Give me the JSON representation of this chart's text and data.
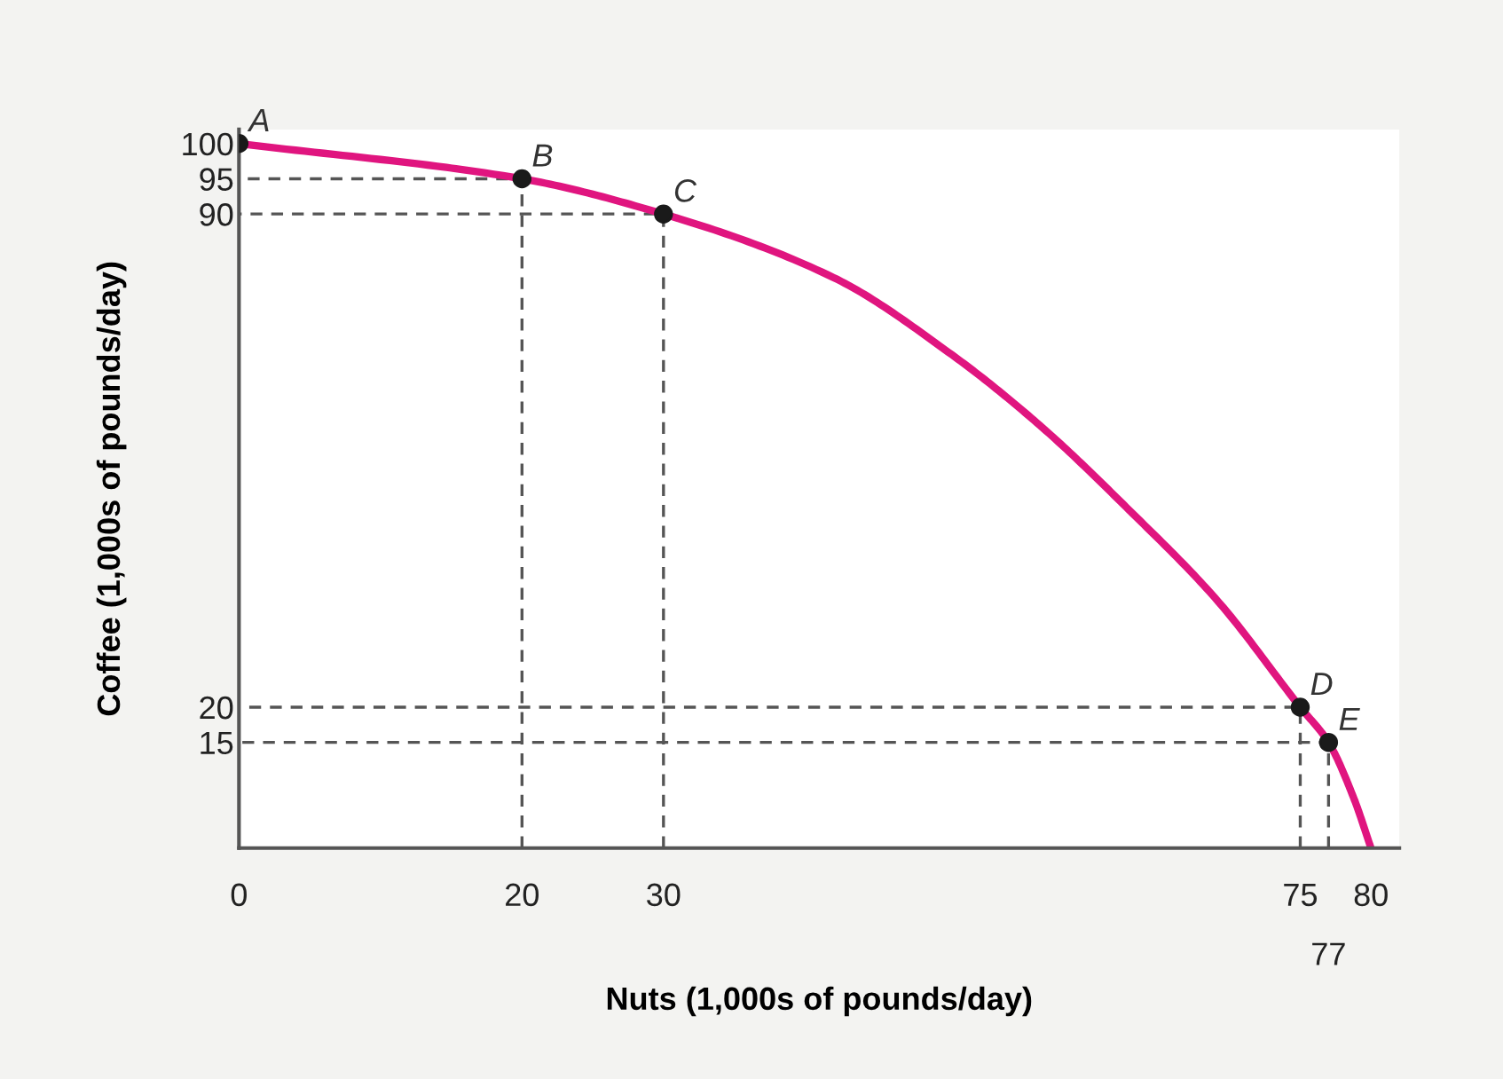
{
  "chart_data": {
    "type": "line",
    "xlabel": "Nuts (1,000s of pounds/day)",
    "ylabel": "Coffee (1,000s of pounds/day)",
    "xlim": [
      0,
      82
    ],
    "ylim": [
      0,
      102
    ],
    "xticks": [
      0,
      20,
      30,
      75,
      80
    ],
    "yticks": [
      15,
      20,
      90,
      95,
      100
    ],
    "grid": false,
    "legend": false,
    "series": [
      {
        "color": "#555555",
        "line_style": "dashed",
        "marker": "none",
        "x": [
          20,
          20,
          0
        ],
        "values": [
          0,
          95,
          95
        ]
      },
      {
        "color": "#555555",
        "line_style": "dashed",
        "marker": "none",
        "x": [
          30,
          30,
          0
        ],
        "values": [
          0,
          90,
          90
        ]
      },
      {
        "color": "#555555",
        "line_style": "dashed",
        "marker": "none",
        "x": [
          75,
          75,
          0
        ],
        "values": [
          0,
          20,
          20
        ]
      },
      {
        "color": "#555555",
        "line_style": "dashed",
        "marker": "none",
        "x": [
          77,
          77,
          0
        ],
        "values": [
          0,
          15,
          15
        ]
      },
      {
        "color": "#e0157f",
        "line_style": "solid",
        "marker": "none",
        "x": [
          0,
          20,
          30,
          42,
          50.4,
          56.6,
          62.9,
          69.2,
          75,
          77,
          78.8,
          80
        ],
        "values": [
          100,
          95,
          90,
          81,
          70,
          60,
          48,
          35,
          20,
          15,
          7,
          0
        ]
      },
      {
        "type": "scatter",
        "color": "#1a1a1a",
        "marker": "circle",
        "x": [
          0,
          20,
          30,
          75,
          77
        ],
        "values": [
          100,
          95,
          90,
          20,
          15
        ]
      }
    ],
    "annotations": [
      {
        "text": "A",
        "x": 0,
        "y": 100
      },
      {
        "text": "B",
        "x": 20,
        "y": 95
      },
      {
        "text": "C",
        "x": 30,
        "y": 90
      },
      {
        "text": "D",
        "x": 75,
        "y": 20
      },
      {
        "text": "E",
        "x": 77,
        "y": 15
      },
      {
        "text": "77",
        "x": 77,
        "y": 0
      }
    ]
  }
}
